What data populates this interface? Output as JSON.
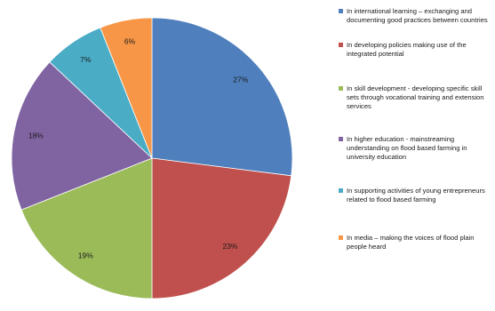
{
  "chart_data": {
    "type": "pie",
    "slices": [
      {
        "label": "In international learning – exchanging and documenting good practices between countries",
        "value": 27,
        "value_label": "27%",
        "color": "#4f7fbd"
      },
      {
        "label": "In developing policies making use of the integrated potential",
        "value": 23,
        "value_label": "23%",
        "color": "#c0504d"
      },
      {
        "label": "In skill development -  developing specific skill sets through vocational training and extension services",
        "value": 19,
        "value_label": "19%",
        "color": "#9bbb59"
      },
      {
        "label": "In higher education - mainstreaming understanding on flood based farming in university education",
        "value": 18,
        "value_label": "18%",
        "color": "#8064a2"
      },
      {
        "label": "In supporting activities of young entrepreneurs related to flood based farming",
        "value": 7,
        "value_label": "7%",
        "color": "#4bacc6"
      },
      {
        "label": "In media – making the voices of flood plain people heard",
        "value": 6,
        "value_label": "6%",
        "color": "#f79646"
      }
    ],
    "start": "top",
    "direction": "clockwise",
    "legend_position": "right"
  }
}
